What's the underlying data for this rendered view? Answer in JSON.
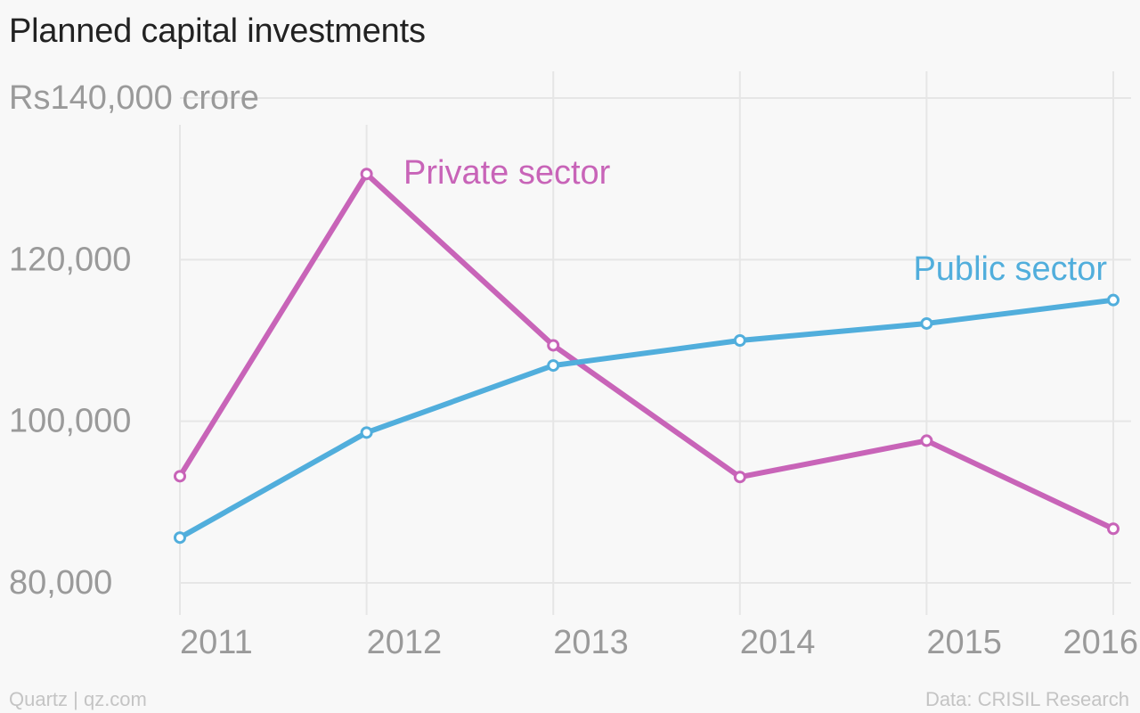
{
  "title": "Planned capital investments",
  "footer": {
    "credit": "Quartz | qz.com",
    "source": "Data: CRISIL Research"
  },
  "chart_data": {
    "type": "line",
    "x": [
      "2011",
      "2012",
      "2013",
      "2014",
      "2015",
      "2016"
    ],
    "y_ticks": [
      {
        "value": 140000,
        "label": "Rs140,000 crore"
      },
      {
        "value": 120000,
        "label": "120,000"
      },
      {
        "value": 100000,
        "label": "100,000"
      },
      {
        "value": 80000,
        "label": "80,000"
      }
    ],
    "ylim": [
      80000,
      140000
    ],
    "grid": true,
    "series": [
      {
        "name": "Private sector",
        "color": "#c864b8",
        "values": [
          93200,
          130600,
          109400,
          93100,
          97600,
          86700
        ]
      },
      {
        "name": "Public sector",
        "color": "#51aedc",
        "values": [
          85600,
          98600,
          106900,
          110000,
          112100,
          115000
        ]
      }
    ]
  }
}
